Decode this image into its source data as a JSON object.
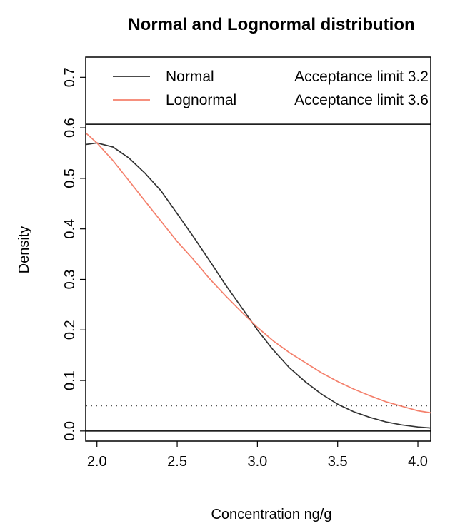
{
  "chart_data": {
    "type": "line",
    "title": "Normal and Lognormal distribution",
    "xlabel": "Concentration ng/g",
    "ylabel": "Density",
    "xlim": [
      1.93,
      4.08
    ],
    "ylim": [
      -0.02,
      0.74
    ],
    "x_ticks": [
      2.0,
      2.5,
      3.0,
      3.5,
      4.0
    ],
    "x_tick_labels": [
      "2.0",
      "2.5",
      "3.0",
      "3.5",
      "4.0"
    ],
    "y_ticks": [
      0.0,
      0.1,
      0.2,
      0.3,
      0.4,
      0.5,
      0.6,
      0.7
    ],
    "y_tick_labels": [
      "0.0",
      "0.1",
      "0.2",
      "0.3",
      "0.4",
      "0.5",
      "0.6",
      "0.7"
    ],
    "grid": false,
    "legend_position": "top",
    "legend": [
      {
        "name": "Normal",
        "note": "Acceptance limit 3.2",
        "color": "#333333"
      },
      {
        "name": "Lognormal",
        "note": "Acceptance limit 3.6",
        "color": "#f4806c"
      }
    ],
    "reference_lines": [
      {
        "y": 0.05,
        "style": "dotted",
        "color": "#555555"
      },
      {
        "y": 0.0,
        "style": "solid",
        "color": "#000000"
      },
      {
        "y": 0.607,
        "style": "solid",
        "color": "#000000"
      }
    ],
    "series": [
      {
        "name": "Normal",
        "color": "#333333",
        "x": [
          1.93,
          2.0,
          2.1,
          2.2,
          2.3,
          2.4,
          2.5,
          2.6,
          2.7,
          2.8,
          2.9,
          3.0,
          3.1,
          3.2,
          3.3,
          3.4,
          3.5,
          3.6,
          3.7,
          3.8,
          3.9,
          4.0,
          4.08
        ],
        "y": [
          0.567,
          0.57,
          0.562,
          0.54,
          0.51,
          0.475,
          0.43,
          0.385,
          0.338,
          0.29,
          0.245,
          0.2,
          0.16,
          0.125,
          0.097,
          0.073,
          0.053,
          0.038,
          0.027,
          0.018,
          0.012,
          0.008,
          0.006
        ]
      },
      {
        "name": "Lognormal",
        "color": "#f4806c",
        "x": [
          1.93,
          2.0,
          2.1,
          2.2,
          2.3,
          2.4,
          2.5,
          2.6,
          2.7,
          2.8,
          2.9,
          3.0,
          3.1,
          3.2,
          3.3,
          3.4,
          3.5,
          3.6,
          3.7,
          3.8,
          3.9,
          4.0,
          4.08
        ],
        "y": [
          0.59,
          0.57,
          0.535,
          0.495,
          0.455,
          0.415,
          0.375,
          0.34,
          0.302,
          0.268,
          0.236,
          0.205,
          0.178,
          0.155,
          0.135,
          0.115,
          0.098,
          0.083,
          0.07,
          0.058,
          0.049,
          0.04,
          0.036
        ]
      }
    ]
  }
}
